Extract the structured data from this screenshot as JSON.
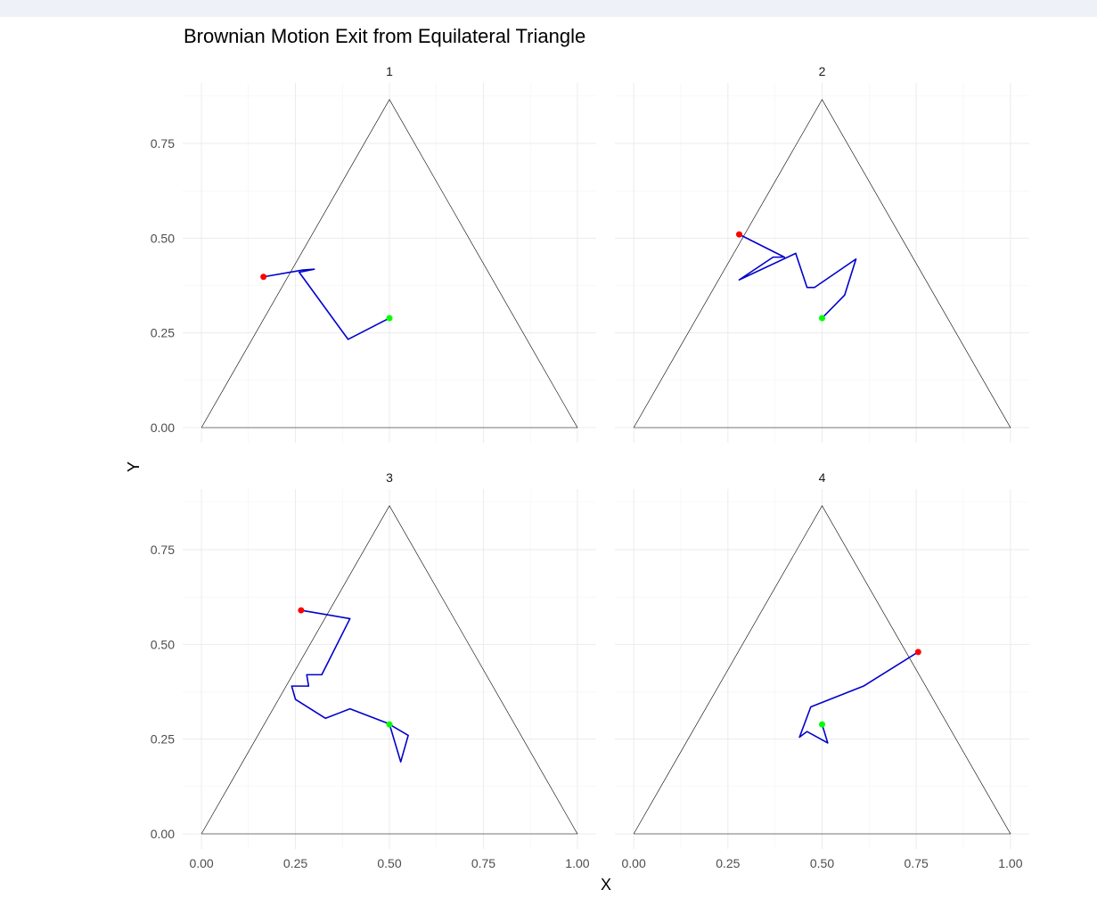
{
  "chart_data": {
    "type": "line",
    "title": "Brownian Motion Exit from Equilateral Triangle",
    "xlabel": "X",
    "ylabel": "Y",
    "xlim": [
      -0.05,
      1.05
    ],
    "ylim": [
      -0.04,
      0.91
    ],
    "x_ticks": [
      0,
      0.25,
      0.5,
      0.75,
      1
    ],
    "x_tick_labels": [
      "0.00",
      "0.25",
      "0.50",
      "0.75",
      "1.00"
    ],
    "y_ticks": [
      0,
      0.25,
      0.5,
      0.75
    ],
    "y_tick_labels": [
      "0.00",
      "0.25",
      "0.50",
      "0.75"
    ],
    "grid": true,
    "triangle": [
      [
        0,
        0
      ],
      [
        1,
        0
      ],
      [
        0.5,
        0.866
      ],
      [
        0,
        0
      ]
    ],
    "colors": {
      "triangle": "#000000",
      "path": "#0000cd",
      "start": "#00ff00",
      "exit": "#ff0000"
    },
    "panels": [
      {
        "label": "1",
        "path": [
          [
            0.5,
            0.289
          ],
          [
            0.39,
            0.233
          ],
          [
            0.26,
            0.41
          ],
          [
            0.3,
            0.418
          ],
          [
            0.27,
            0.416
          ],
          [
            0.165,
            0.398
          ]
        ],
        "start": [
          0.5,
          0.289
        ],
        "exit": [
          0.165,
          0.398
        ]
      },
      {
        "label": "2",
        "path": [
          [
            0.5,
            0.289
          ],
          [
            0.56,
            0.35
          ],
          [
            0.59,
            0.445
          ],
          [
            0.48,
            0.37
          ],
          [
            0.46,
            0.37
          ],
          [
            0.43,
            0.46
          ],
          [
            0.28,
            0.39
          ],
          [
            0.37,
            0.45
          ],
          [
            0.4,
            0.45
          ],
          [
            0.28,
            0.51
          ]
        ],
        "start": [
          0.5,
          0.289
        ],
        "exit": [
          0.28,
          0.51
        ]
      },
      {
        "label": "3",
        "path": [
          [
            0.5,
            0.289
          ],
          [
            0.55,
            0.26
          ],
          [
            0.53,
            0.19
          ],
          [
            0.5,
            0.29
          ],
          [
            0.395,
            0.33
          ],
          [
            0.33,
            0.305
          ],
          [
            0.25,
            0.355
          ],
          [
            0.24,
            0.39
          ],
          [
            0.285,
            0.39
          ],
          [
            0.28,
            0.42
          ],
          [
            0.32,
            0.42
          ],
          [
            0.395,
            0.568
          ],
          [
            0.265,
            0.59
          ]
        ],
        "start": [
          0.5,
          0.289
        ],
        "exit": [
          0.265,
          0.59
        ]
      },
      {
        "label": "4",
        "path": [
          [
            0.5,
            0.289
          ],
          [
            0.515,
            0.24
          ],
          [
            0.46,
            0.27
          ],
          [
            0.44,
            0.255
          ],
          [
            0.47,
            0.335
          ],
          [
            0.61,
            0.39
          ],
          [
            0.755,
            0.48
          ]
        ],
        "start": [
          0.5,
          0.289
        ],
        "exit": [
          0.755,
          0.48
        ]
      }
    ]
  }
}
